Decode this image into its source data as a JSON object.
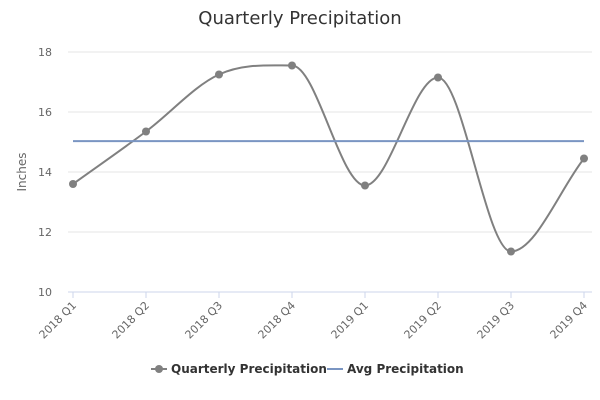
{
  "chart_data": {
    "type": "line",
    "title": "Quarterly Precipitation",
    "xlabel": "",
    "ylabel": "Inches",
    "ylim": [
      10,
      18
    ],
    "yticks": [
      10,
      12,
      14,
      16,
      18
    ],
    "grid": true,
    "legend_position": "bottom",
    "categories": [
      "2018 Q1",
      "2018 Q2",
      "2018 Q3",
      "2018 Q4",
      "2019 Q1",
      "2019 Q2",
      "2019 Q3",
      "2019 Q4"
    ],
    "series": [
      {
        "name": "Quarterly Precipitation",
        "kind": "spline-with-markers",
        "color": "#808080",
        "values": [
          13.6,
          15.35,
          17.25,
          17.55,
          13.55,
          17.15,
          11.35,
          14.45
        ]
      },
      {
        "name": "Avg Precipitation",
        "kind": "line",
        "color": "#7a95c2",
        "values": [
          15.03,
          15.03,
          15.03,
          15.03,
          15.03,
          15.03,
          15.03,
          15.03
        ]
      }
    ]
  }
}
